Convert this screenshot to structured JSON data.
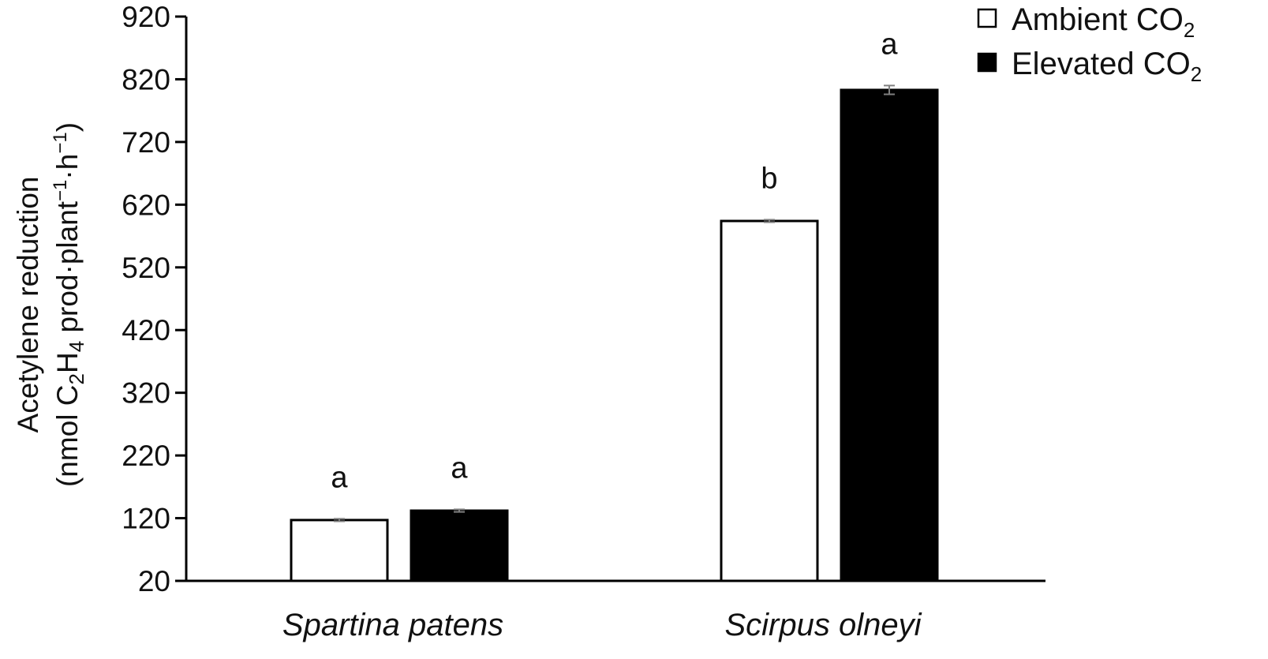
{
  "chart_data": {
    "type": "bar",
    "categories": [
      "Spartina patens",
      "Scirpus olneyi"
    ],
    "series": [
      {
        "name_parts": [
          "Ambient CO",
          "2"
        ],
        "color": "#ffffff",
        "values": [
          117,
          594
        ],
        "errors": [
          2,
          2
        ],
        "sig_letters": [
          "a",
          "b"
        ]
      },
      {
        "name_parts": [
          "Elevated CO",
          "2"
        ],
        "color": "#000000",
        "values": [
          132,
          803
        ],
        "errors": [
          2,
          7
        ],
        "sig_letters": [
          "a",
          "a"
        ]
      }
    ],
    "ylabel_line1": "Acetylene reduction",
    "ylabel_line2_parts": [
      {
        "t": "(nmol C",
        "k": "n"
      },
      {
        "t": "2",
        "k": "sub"
      },
      {
        "t": "H",
        "k": "n"
      },
      {
        "t": "4",
        "k": "sub"
      },
      {
        "t": " prod·plant",
        "k": "n"
      },
      {
        "t": "−1",
        "k": "sup"
      },
      {
        "t": "·h",
        "k": "n"
      },
      {
        "t": "−1",
        "k": "sup"
      },
      {
        "t": ")",
        "k": "n"
      }
    ],
    "yticks": [
      20,
      120,
      220,
      320,
      420,
      520,
      620,
      720,
      820,
      920
    ],
    "ylim": [
      20,
      920
    ],
    "grid": false,
    "legend_position": "top-right"
  }
}
